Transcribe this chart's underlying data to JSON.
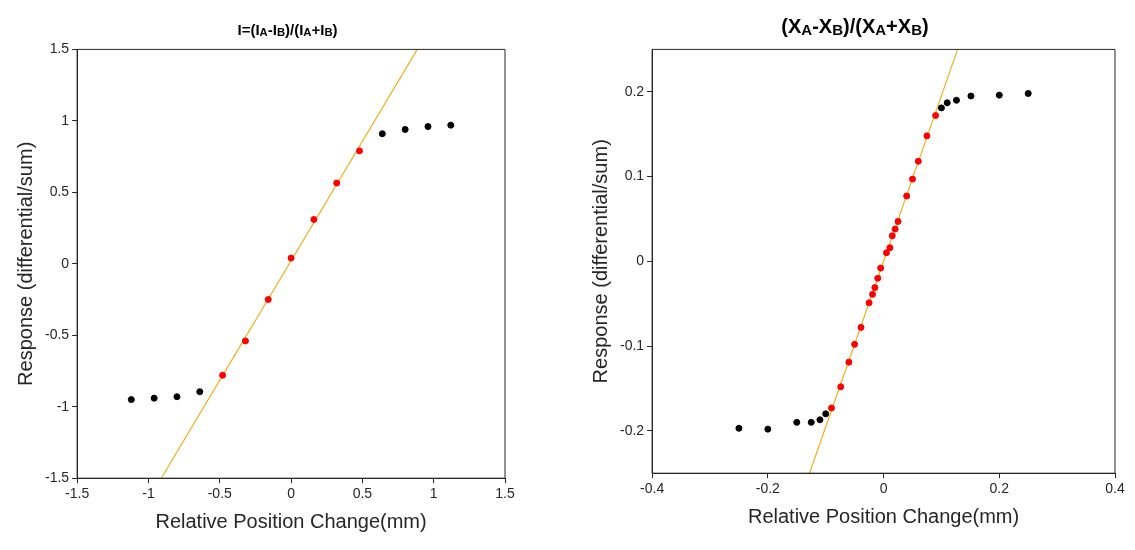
{
  "chart_data": [
    {
      "type": "scatter",
      "title": "I=(I$_{A}$-I$_{B}$)/(I$_{A}$+I$_{B}$)",
      "xlabel": "Relative Position Change(mm)",
      "ylabel": "Response (differential/sum)",
      "xlim": [
        -1.5,
        1.5
      ],
      "xticks": [
        -1.5,
        -1,
        -0.5,
        0,
        0.5,
        1,
        1.5
      ],
      "ylim": [
        -1.5,
        1.5
      ],
      "yticks": [
        -1.5,
        -1,
        -0.5,
        0,
        0.5,
        1,
        1.5
      ],
      "grid": false,
      "legend": false,
      "marker": "circle",
      "series": [
        {
          "color": "#000000",
          "x": [
            -1.12,
            -0.96,
            -0.8,
            -0.64,
            0.64,
            0.8,
            0.96,
            1.12
          ],
          "values": [
            -0.95,
            -0.94,
            -0.93,
            -0.895,
            0.91,
            0.94,
            0.96,
            0.97
          ]
        },
        {
          "color": "#ff0000",
          "x": [
            -0.48,
            -0.32,
            -0.16,
            0,
            0.16,
            0.32,
            0.48
          ],
          "values": [
            -0.78,
            -0.54,
            -0.25,
            0.04,
            0.31,
            0.565,
            0.79
          ]
        },
        {
          "type": "line",
          "marker": "none",
          "color": "#edb120",
          "x": [
            -0.91,
            0.885
          ],
          "values": [
            -1.5,
            1.5
          ]
        }
      ]
    },
    {
      "type": "scatter",
      "title": "(X$_{A}$-X$_{B}$)/(X$_{A}$+X$_{B}$)",
      "xlabel": "Relative Position Change(mm)",
      "ylabel": "Response (differential/sum)",
      "xlim": [
        -0.4,
        0.4
      ],
      "xticks": [
        -0.4,
        -0.2,
        0,
        0.2,
        0.4
      ],
      "ylim": [
        -0.25,
        0.25
      ],
      "yticks": [
        -0.2,
        -0.1,
        0,
        0.1,
        0.2
      ],
      "grid": false,
      "legend": false,
      "marker": "circle",
      "series": [
        {
          "color": "#000000",
          "x": [
            -0.25,
            -0.2,
            -0.15,
            -0.125,
            -0.11,
            -0.1,
            0.1,
            0.11,
            0.126,
            0.151,
            0.2,
            0.25
          ],
          "values": [
            -0.197,
            -0.198,
            -0.19,
            -0.19,
            -0.187,
            -0.18,
            0.181,
            0.187,
            0.19,
            0.195,
            0.196,
            0.198
          ]
        },
        {
          "color": "#ff0000",
          "x": [
            -0.09,
            -0.074,
            -0.06,
            -0.05,
            -0.039,
            -0.025,
            -0.019,
            -0.015,
            -0.01,
            -0.005,
            0.005,
            0.011,
            0.015,
            0.02,
            0.025,
            0.04,
            0.05,
            0.06,
            0.075,
            0.09
          ],
          "values": [
            -0.173,
            -0.148,
            -0.119,
            -0.098,
            -0.078,
            -0.049,
            -0.039,
            -0.031,
            -0.02,
            -0.008,
            0.01,
            0.016,
            0.03,
            0.038,
            0.047,
            0.077,
            0.097,
            0.118,
            0.148,
            0.172
          ]
        },
        {
          "type": "line",
          "marker": "none",
          "color": "#edb120",
          "x": [
            -0.128,
            0.128
          ],
          "values": [
            -0.25,
            0.25
          ]
        }
      ]
    }
  ]
}
